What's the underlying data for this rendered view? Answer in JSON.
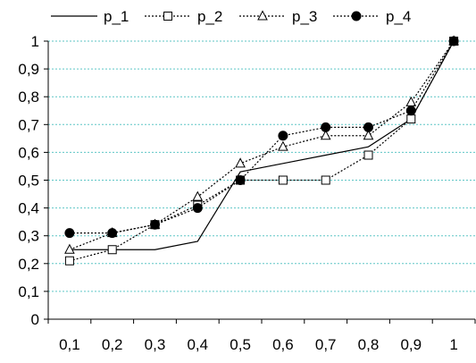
{
  "chart_data": {
    "type": "line",
    "title": "",
    "xlabel": "",
    "ylabel": "",
    "x": [
      "0,1",
      "0,2",
      "0,3",
      "0,4",
      "0,5",
      "0,6",
      "0,7",
      "0,8",
      "0,9",
      "1"
    ],
    "ylim": [
      0,
      1
    ],
    "y_ticks": [
      "0",
      "0,1",
      "0,2",
      "0,3",
      "0,4",
      "0,5",
      "0,6",
      "0,7",
      "0,8",
      "0,9",
      "1"
    ],
    "grid": "horizontal dashed",
    "legend_position": "top",
    "series": [
      {
        "name": "p_1",
        "style": "solid",
        "marker": "none",
        "color": "#000000",
        "values": [
          0.25,
          0.25,
          0.25,
          0.28,
          0.53,
          0.56,
          0.59,
          0.62,
          0.72,
          1.0
        ]
      },
      {
        "name": "p_2",
        "style": "dotted",
        "marker": "square-open",
        "color": "#000000",
        "values": [
          0.21,
          0.25,
          0.34,
          0.41,
          0.5,
          0.5,
          0.5,
          0.59,
          0.72,
          1.0
        ]
      },
      {
        "name": "p_3",
        "style": "dotted",
        "marker": "triangle-open",
        "color": "#000000",
        "values": [
          0.25,
          0.31,
          0.34,
          0.44,
          0.56,
          0.62,
          0.66,
          0.66,
          0.78,
          1.0
        ]
      },
      {
        "name": "p_4",
        "style": "dotted",
        "marker": "circle-filled",
        "color": "#000000",
        "values": [
          0.31,
          0.31,
          0.34,
          0.4,
          0.5,
          0.66,
          0.69,
          0.69,
          0.75,
          1.0
        ]
      }
    ],
    "colors": {
      "grid": "#5fc6c6",
      "axis": "#000000"
    }
  }
}
